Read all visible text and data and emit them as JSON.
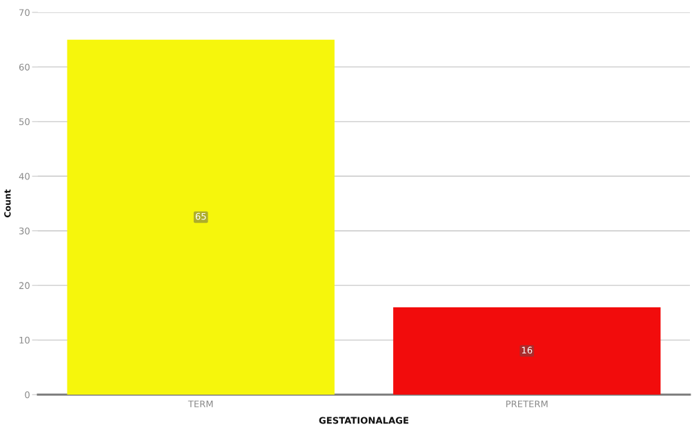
{
  "chart_data": {
    "type": "bar",
    "xlabel": "GESTATIONALAGE",
    "ylabel": "Count",
    "categories": [
      "TERM",
      "PRETERM"
    ],
    "values": [
      65,
      16
    ],
    "colors": [
      "#f6f60c",
      "#f20c0c"
    ],
    "ylim": [
      0,
      70
    ],
    "yticks": [
      0,
      10,
      20,
      30,
      40,
      50,
      60,
      70
    ],
    "grid": "y",
    "legend": false,
    "data_labels": true
  }
}
